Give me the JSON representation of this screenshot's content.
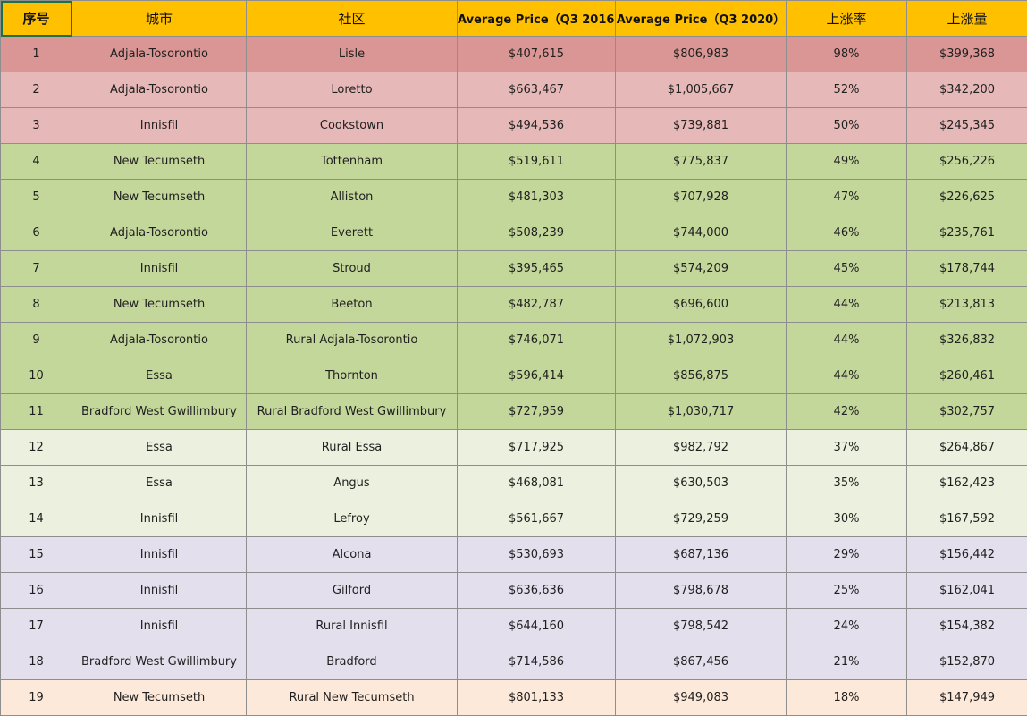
{
  "headers": [
    "序号",
    "城市",
    "社区",
    "Average Price（Q3 2016)",
    "Average Price（Q3 2020）",
    "上涨率",
    "上涨量"
  ],
  "colors": {
    "header": "#ffc000",
    "red1": "#da9694",
    "red2": "#e6b8b7",
    "green": "#c4d79b",
    "lgreen": "#ebf1de",
    "lavender": "#e4dfec",
    "peach": "#fde9d9"
  },
  "rows": [
    {
      "no": "1",
      "city": "Adjala-Tosorontio",
      "community": "Lisle",
      "p2016": "$407,615",
      "p2020": "$806,983",
      "rate": "98%",
      "amount": "$399,368",
      "group": "red1"
    },
    {
      "no": "2",
      "city": "Adjala-Tosorontio",
      "community": "Loretto",
      "p2016": "$663,467",
      "p2020": "$1,005,667",
      "rate": "52%",
      "amount": "$342,200",
      "group": "red2"
    },
    {
      "no": "3",
      "city": "Innisfil",
      "community": "Cookstown",
      "p2016": "$494,536",
      "p2020": "$739,881",
      "rate": "50%",
      "amount": "$245,345",
      "group": "red2"
    },
    {
      "no": "4",
      "city": "New Tecumseth",
      "community": "Tottenham",
      "p2016": "$519,611",
      "p2020": "$775,837",
      "rate": "49%",
      "amount": "$256,226",
      "group": "green"
    },
    {
      "no": "5",
      "city": "New Tecumseth",
      "community": "Alliston",
      "p2016": "$481,303",
      "p2020": "$707,928",
      "rate": "47%",
      "amount": "$226,625",
      "group": "green"
    },
    {
      "no": "6",
      "city": "Adjala-Tosorontio",
      "community": "Everett",
      "p2016": "$508,239",
      "p2020": "$744,000",
      "rate": "46%",
      "amount": "$235,761",
      "group": "green"
    },
    {
      "no": "7",
      "city": "Innisfil",
      "community": "Stroud",
      "p2016": "$395,465",
      "p2020": "$574,209",
      "rate": "45%",
      "amount": "$178,744",
      "group": "green"
    },
    {
      "no": "8",
      "city": "New Tecumseth",
      "community": "Beeton",
      "p2016": "$482,787",
      "p2020": "$696,600",
      "rate": "44%",
      "amount": "$213,813",
      "group": "green"
    },
    {
      "no": "9",
      "city": "Adjala-Tosorontio",
      "community": "Rural Adjala-Tosorontio",
      "p2016": "$746,071",
      "p2020": "$1,072,903",
      "rate": "44%",
      "amount": "$326,832",
      "group": "green"
    },
    {
      "no": "10",
      "city": "Essa",
      "community": "Thornton",
      "p2016": "$596,414",
      "p2020": "$856,875",
      "rate": "44%",
      "amount": "$260,461",
      "group": "green"
    },
    {
      "no": "11",
      "city": "Bradford West Gwillimbury",
      "community": "Rural Bradford West Gwillimbury",
      "p2016": "$727,959",
      "p2020": "$1,030,717",
      "rate": "42%",
      "amount": "$302,757",
      "group": "green"
    },
    {
      "no": "12",
      "city": "Essa",
      "community": "Rural Essa",
      "p2016": "$717,925",
      "p2020": "$982,792",
      "rate": "37%",
      "amount": "$264,867",
      "group": "lgreen"
    },
    {
      "no": "13",
      "city": "Essa",
      "community": "Angus",
      "p2016": "$468,081",
      "p2020": "$630,503",
      "rate": "35%",
      "amount": "$162,423",
      "group": "lgreen"
    },
    {
      "no": "14",
      "city": "Innisfil",
      "community": "Lefroy",
      "p2016": "$561,667",
      "p2020": "$729,259",
      "rate": "30%",
      "amount": "$167,592",
      "group": "lgreen"
    },
    {
      "no": "15",
      "city": "Innisfil",
      "community": "Alcona",
      "p2016": "$530,693",
      "p2020": "$687,136",
      "rate": "29%",
      "amount": "$156,442",
      "group": "lav"
    },
    {
      "no": "16",
      "city": "Innisfil",
      "community": "Gilford",
      "p2016": "$636,636",
      "p2020": "$798,678",
      "rate": "25%",
      "amount": "$162,041",
      "group": "lav"
    },
    {
      "no": "17",
      "city": "Innisfil",
      "community": "Rural Innisfil",
      "p2016": "$644,160",
      "p2020": "$798,542",
      "rate": "24%",
      "amount": "$154,382",
      "group": "lav"
    },
    {
      "no": "18",
      "city": "Bradford West Gwillimbury",
      "community": "Bradford",
      "p2016": "$714,586",
      "p2020": "$867,456",
      "rate": "21%",
      "amount": "$152,870",
      "group": "lav"
    },
    {
      "no": "19",
      "city": "New Tecumseth",
      "community": "Rural New Tecumseth",
      "p2016": "$801,133",
      "p2020": "$949,083",
      "rate": "18%",
      "amount": "$147,949",
      "group": "peach"
    }
  ]
}
